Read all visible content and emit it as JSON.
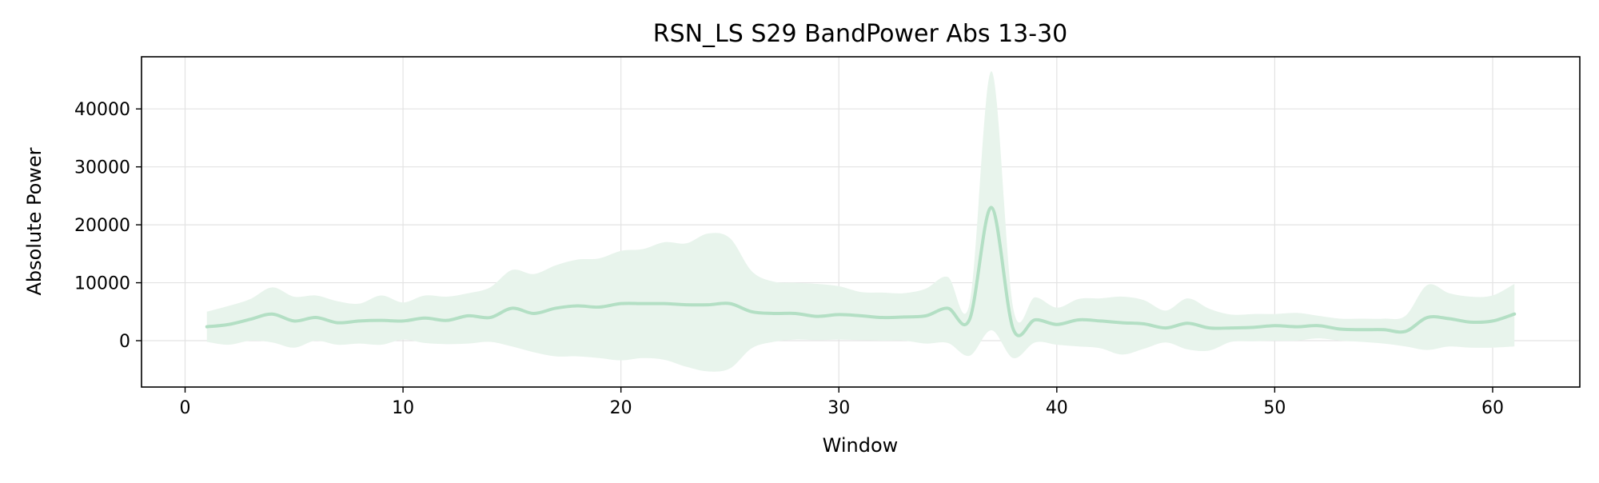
{
  "chart_data": {
    "type": "line",
    "title": "RSN_LS S29 BandPower Abs 13-30",
    "xlabel": "Window",
    "ylabel": "Absolute Power",
    "xlim": [
      -2,
      64
    ],
    "ylim": [
      -8000,
      49000
    ],
    "xticks": [
      0,
      10,
      20,
      30,
      40,
      50,
      60
    ],
    "yticks": [
      0,
      10000,
      20000,
      30000,
      40000
    ],
    "grid": true,
    "colors": {
      "line": "#b3dfc4",
      "band": "#e8f4ec",
      "grid": "#e3e3e3",
      "axes": "#000000"
    },
    "series": [
      {
        "x": [
          1,
          2,
          3,
          4,
          5,
          6,
          7,
          8,
          9,
          10,
          11,
          12,
          13,
          14,
          15,
          16,
          17,
          18,
          19,
          20,
          21,
          22,
          23,
          24,
          25,
          26,
          27,
          28,
          29,
          30,
          31,
          32,
          33,
          34,
          35,
          36,
          37,
          38,
          39,
          40,
          41,
          42,
          43,
          44,
          45,
          46,
          47,
          48,
          49,
          50,
          51,
          52,
          53,
          54,
          55,
          56,
          57,
          58,
          59,
          60,
          61
        ],
        "mean": [
          2400,
          2800,
          3700,
          4600,
          3400,
          4000,
          3100,
          3400,
          3500,
          3400,
          3900,
          3500,
          4300,
          4000,
          5600,
          4700,
          5600,
          6000,
          5800,
          6400,
          6400,
          6400,
          6200,
          6200,
          6400,
          5000,
          4700,
          4700,
          4200,
          4500,
          4300,
          4000,
          4100,
          4300,
          5600,
          3700,
          23000,
          2000,
          3600,
          2800,
          3600,
          3400,
          3100,
          2900,
          2200,
          3000,
          2200,
          2200,
          2300,
          2600,
          2400,
          2600,
          2000,
          1900,
          1900,
          1600,
          4000,
          3800,
          3200,
          3400,
          4600
        ],
        "upper": [
          5000,
          6000,
          7200,
          9200,
          7600,
          7800,
          6800,
          6400,
          7800,
          6600,
          7800,
          7600,
          8200,
          9200,
          12200,
          11500,
          13000,
          14000,
          14200,
          15500,
          15800,
          17000,
          16800,
          18500,
          17700,
          12000,
          10200,
          10000,
          9800,
          9400,
          8400,
          8300,
          8200,
          9000,
          11000,
          6500,
          46500,
          5600,
          7500,
          5700,
          7200,
          7300,
          7600,
          7000,
          5200,
          7300,
          5500,
          4500,
          4600,
          4600,
          4800,
          4300,
          3800,
          3800,
          3800,
          4300,
          9600,
          8200,
          7600,
          7800,
          9800
        ],
        "lower": [
          -200,
          -700,
          0,
          -300,
          -1200,
          0,
          -700,
          -500,
          -700,
          200,
          -400,
          -600,
          -500,
          -200,
          -1000,
          -2000,
          -2700,
          -2700,
          -3000,
          -3400,
          -3000,
          -3300,
          -4500,
          -5300,
          -4800,
          -1300,
          -200,
          200,
          100,
          200,
          100,
          0,
          0,
          -500,
          -400,
          -2600,
          1800,
          -3000,
          -300,
          -700,
          -1000,
          -1300,
          -2400,
          -1400,
          -300,
          -1500,
          -1700,
          -200,
          -100,
          0,
          0,
          400,
          0,
          -200,
          -500,
          -1000,
          -1600,
          -1000,
          -1200,
          -1200,
          -1000
        ]
      }
    ]
  }
}
